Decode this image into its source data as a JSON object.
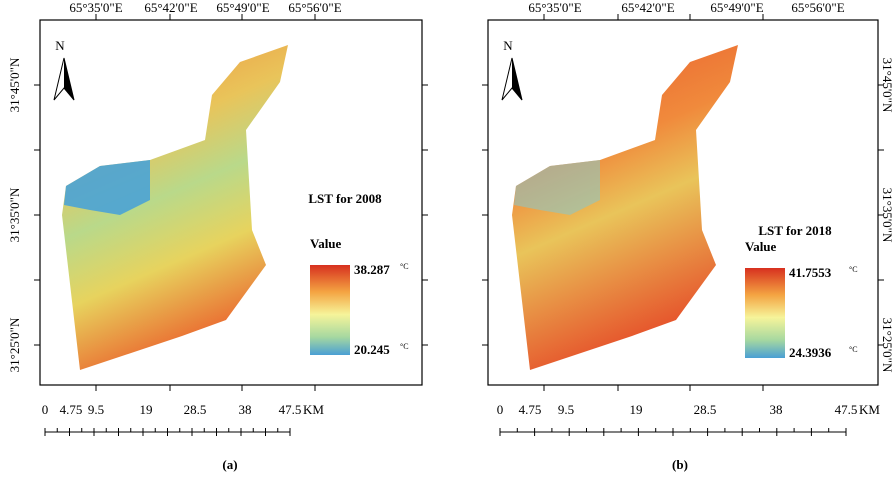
{
  "panels": [
    {
      "caption": "(a)",
      "title": "LST for 2008",
      "legend_title": "Value",
      "legend_max": "38.287",
      "legend_min": "20.245",
      "unit": "°C",
      "north": "N",
      "top_ticks": [
        "65°35'0\"E",
        "65°42'0\"E",
        "65°49'0\"E",
        "65°56'0\"E"
      ],
      "side_ticks": [
        "31°45'0\"N",
        "31°35'0\"N",
        "31°25'0\"N"
      ],
      "scale_labels": [
        "0",
        "4.75",
        "9.5",
        "19",
        "28.5",
        "38",
        "47.5"
      ],
      "scale_unit": "KM"
    },
    {
      "caption": "(b)",
      "title": "LST for 2018",
      "legend_title": "Value",
      "legend_max": "41.7553",
      "legend_min": "24.3936",
      "unit": "°C",
      "north": "N",
      "top_ticks": [
        "65°35'0\"E",
        "65°42'0\"E",
        "65°49'0\"E",
        "65°56'0\"E"
      ],
      "side_ticks": [
        "31°45'0\"N",
        "31°35'0\"N",
        "31°25'0\"N"
      ],
      "scale_labels": [
        "0",
        "4.75",
        "9.5",
        "19",
        "28.5",
        "38",
        "47.5"
      ],
      "scale_unit": "KM"
    }
  ]
}
